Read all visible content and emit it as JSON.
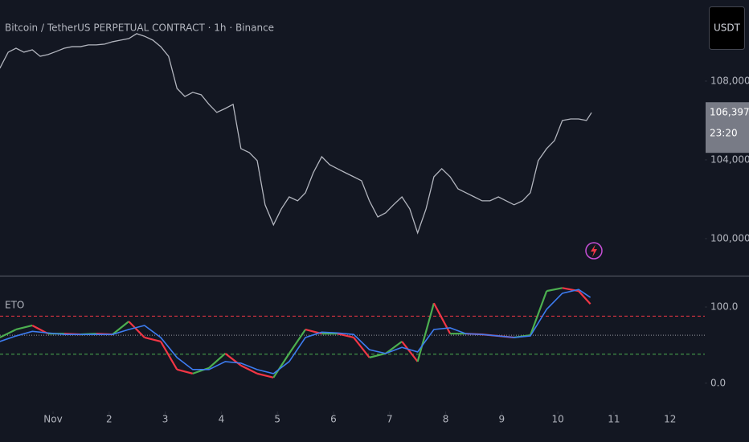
{
  "chart_data": [
    {
      "type": "line",
      "title": "Bitcoin / TetherUS PERPETUAL CONTRACT · 1h · Binance",
      "button": "USDT",
      "x": [
        0.05,
        0.2,
        0.34,
        0.48,
        0.63,
        0.77,
        0.91,
        1.06,
        1.2,
        1.34,
        1.49,
        1.63,
        1.77,
        1.92,
        2.06,
        2.2,
        2.35,
        2.49,
        2.63,
        2.78,
        2.92,
        3.06,
        3.21,
        3.35,
        3.49,
        3.64,
        3.78,
        3.92,
        4.07,
        4.21,
        4.35,
        4.5,
        4.64,
        4.78,
        4.93,
        5.07,
        5.21,
        5.36,
        5.5,
        5.64,
        5.79,
        5.93,
        6.07,
        6.21,
        6.36,
        6.5,
        6.64,
        6.79,
        6.93,
        7.07,
        7.22,
        7.36,
        7.5,
        7.65,
        7.79,
        7.93,
        8.08,
        8.22,
        8.36,
        8.51,
        8.65,
        8.79,
        8.94,
        9.08,
        9.22,
        9.37,
        9.51,
        9.65,
        9.8,
        9.94,
        10.08,
        10.23,
        10.37,
        10.51,
        10.6
      ],
      "series": [
        {
          "color": "#b2b5be",
          "values": [
            108650,
            109470,
            109670,
            109470,
            109590,
            109260,
            109350,
            109510,
            109670,
            109750,
            109750,
            109840,
            109840,
            109880,
            110000,
            110080,
            110160,
            110410,
            110280,
            110080,
            109750,
            109260,
            107630,
            107220,
            107430,
            107310,
            106820,
            106410,
            106610,
            106820,
            104570,
            104370,
            103960,
            101720,
            100700,
            101510,
            102120,
            101920,
            102330,
            103350,
            104160,
            103760,
            103550,
            103350,
            103140,
            102940,
            101920,
            101100,
            101310,
            101720,
            102120,
            101510,
            100290,
            101510,
            103140,
            103550,
            103140,
            102530,
            102330,
            102120,
            101920,
            101920,
            102120,
            101920,
            101720,
            101920,
            102330,
            103960,
            104570,
            104980,
            106000,
            106080,
            106080,
            106000,
            106397.2
          ]
        }
      ],
      "last_price": {
        "value": 106397.2,
        "label": "106,397.2"
      },
      "countdown": "23:20",
      "xlim": [
        0.054,
        12.62
      ],
      "ylim": [
        98120,
        112120
      ],
      "yticks": [
        {
          "value": 100000,
          "label": "100,000.0"
        },
        {
          "value": 104000,
          "label": "104,000.0"
        },
        {
          "value": 108000,
          "label": "108,000.0"
        }
      ]
    },
    {
      "type": "line",
      "title": "ETO",
      "x": [
        0.05,
        0.34,
        0.63,
        0.91,
        1.2,
        1.49,
        1.77,
        2.06,
        2.35,
        2.63,
        2.92,
        3.21,
        3.49,
        3.78,
        4.07,
        4.35,
        4.64,
        4.93,
        5.21,
        5.5,
        5.79,
        6.07,
        6.36,
        6.64,
        6.93,
        7.22,
        7.5,
        7.79,
        8.08,
        8.36,
        8.65,
        8.94,
        9.22,
        9.51,
        9.8,
        10.08,
        10.37,
        10.58
      ],
      "series": [
        {
          "color": "#4caf50",
          "down_color": "#f23645",
          "values": [
            60,
            70.5,
            75.8,
            65,
            65,
            64,
            65,
            64,
            81,
            60,
            54.7,
            17.9,
            12.6,
            20,
            39,
            23.2,
            12.6,
            7.4,
            39,
            70.5,
            65,
            65,
            60,
            33.7,
            39,
            54.7,
            28.4,
            105,
            65,
            65,
            64,
            62,
            60,
            63,
            121,
            125,
            121,
            104
          ]
        },
        {
          "color": "#3d7cf0",
          "values": [
            54.7,
            62,
            68,
            66,
            64,
            64,
            64,
            64,
            70.5,
            75.8,
            60,
            33.7,
            17.9,
            17.9,
            28.4,
            26.3,
            17.9,
            12.6,
            28.4,
            60,
            67,
            66,
            64,
            44,
            39,
            47,
            41,
            70.5,
            72.6,
            65,
            64,
            62,
            60,
            62,
            97,
            118,
            123,
            112.6
          ]
        }
      ],
      "levels": [
        {
          "value": 88,
          "color": "#f23645"
        },
        {
          "value": 63,
          "color": "#9598a1"
        },
        {
          "value": 38,
          "color": "#4caf50"
        }
      ],
      "xlim": [
        0.054,
        12.62
      ],
      "xticks": [
        {
          "value": 1,
          "label": "Nov"
        },
        2,
        3,
        4,
        5,
        6,
        7,
        8,
        9,
        10,
        11,
        12
      ],
      "ylim": [
        -35,
        138
      ],
      "yticks": [
        {
          "value": 0,
          "label": "0.0"
        },
        {
          "value": 100,
          "label": "100.0"
        }
      ]
    }
  ]
}
